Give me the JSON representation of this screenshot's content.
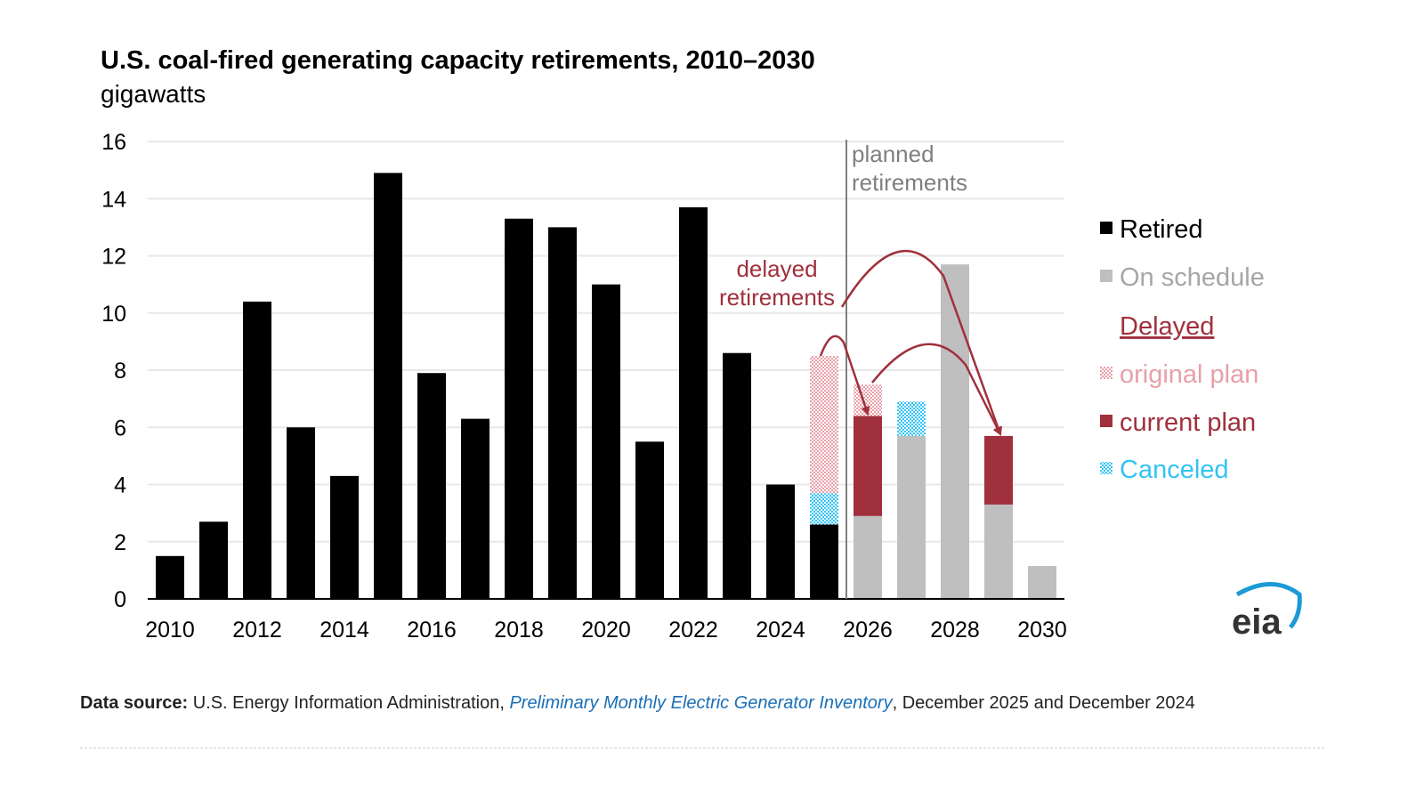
{
  "chart_data": {
    "type": "bar",
    "stacked": true,
    "title": "U.S. coal-fired generating capacity retirements, 2010–2030",
    "ylabel": "gigawatts",
    "ylim": [
      0,
      16
    ],
    "yticks": [
      "0",
      "2",
      "4",
      "6",
      "8",
      "10",
      "12",
      "14",
      "16"
    ],
    "xtick_labels": [
      "2010",
      "2012",
      "2014",
      "2016",
      "2018",
      "2020",
      "2022",
      "2024",
      "2026",
      "2028",
      "2030"
    ],
    "grid": true,
    "legend_placement": "right",
    "categories": [
      "2010",
      "2011",
      "2012",
      "2013",
      "2014",
      "2015",
      "2016",
      "2017",
      "2018",
      "2019",
      "2020",
      "2021",
      "2022",
      "2023",
      "2024",
      "2025",
      "2026",
      "2027",
      "2028",
      "2029",
      "2030"
    ],
    "series": [
      {
        "name": "Retired",
        "color": "#000000",
        "values": [
          1.5,
          2.7,
          10.4,
          6.0,
          4.3,
          14.9,
          7.9,
          6.3,
          13.3,
          13.0,
          11.0,
          5.5,
          13.7,
          8.6,
          4.0,
          2.6,
          0,
          0,
          0,
          0,
          0
        ]
      },
      {
        "name": "On schedule",
        "color": "#bfbfbf",
        "values": [
          0,
          0,
          0,
          0,
          0,
          0,
          0,
          0,
          0,
          0,
          0,
          0,
          0,
          0,
          0,
          0,
          2.9,
          5.7,
          11.7,
          3.3,
          1.15
        ]
      },
      {
        "name": "current plan",
        "color": "#a0303c",
        "values": [
          0,
          0,
          0,
          0,
          0,
          0,
          0,
          0,
          0,
          0,
          0,
          0,
          0,
          0,
          0,
          0,
          3.5,
          0,
          0,
          2.4,
          0
        ]
      },
      {
        "name": "Canceled",
        "color": "#33c3f5",
        "pattern": true,
        "values": [
          0,
          0,
          0,
          0,
          0,
          0,
          0,
          0,
          0,
          0,
          0,
          0,
          0,
          0,
          0,
          1.1,
          0,
          1.2,
          0,
          0,
          0
        ]
      },
      {
        "name": "original plan",
        "color": "#e8a0a8",
        "pattern": true,
        "values": [
          0,
          0,
          0,
          0,
          0,
          0,
          0,
          0,
          0,
          0,
          0,
          0,
          0,
          0,
          0,
          4.8,
          1.1,
          0,
          0,
          0,
          0
        ]
      }
    ],
    "annotations": {
      "planned": [
        "planned",
        "retirements"
      ],
      "delayed": [
        "delayed",
        "retirements"
      ]
    },
    "legend": {
      "retired": "Retired",
      "on_schedule": "On schedule",
      "delayed_header": "Delayed",
      "original": "original plan",
      "current": "current plan",
      "canceled": "Canceled"
    }
  },
  "source": {
    "label": "Data source:",
    "text1": " U.S. Energy Information Administration, ",
    "link": "Preliminary Monthly Electric Generator Inventory",
    "text2": ", December 2025 and December 2024"
  },
  "logo": "eia",
  "colors": {
    "annotation_red": "#a0303c",
    "planned_gray": "#808080",
    "canceled_blue": "#33c3f5",
    "original_pink": "#e8a0a8"
  }
}
